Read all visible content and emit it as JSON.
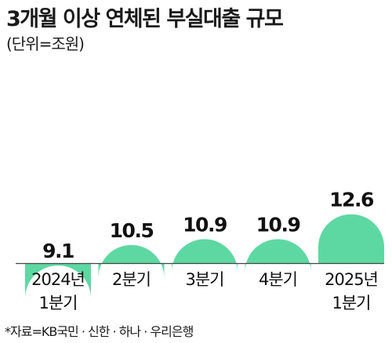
{
  "title": "3개월 이상 연체된 부실대출 규모",
  "unit": "(단위=조원)",
  "source": "*자료=KB국민 · 신한 · 하나 · 우리은행",
  "colors": {
    "bar": "#5ed8a3",
    "baseline": "#444444"
  },
  "chart_data": {
    "type": "bar",
    "categories": [
      [
        "2024년",
        "1분기"
      ],
      [
        "2분기"
      ],
      [
        "3분기"
      ],
      [
        "4분기"
      ],
      [
        "2025년",
        "1분기"
      ]
    ],
    "values": [
      9.1,
      10.5,
      10.9,
      10.9,
      12.6
    ],
    "value_labels": [
      "9.1",
      "10.5",
      "10.9",
      "10.9",
      "12.6"
    ],
    "title": "3개월 이상 연체된 부실대출 규모",
    "xlabel": "",
    "ylabel": "",
    "unit": "조원",
    "grid": false,
    "legend": "none"
  }
}
